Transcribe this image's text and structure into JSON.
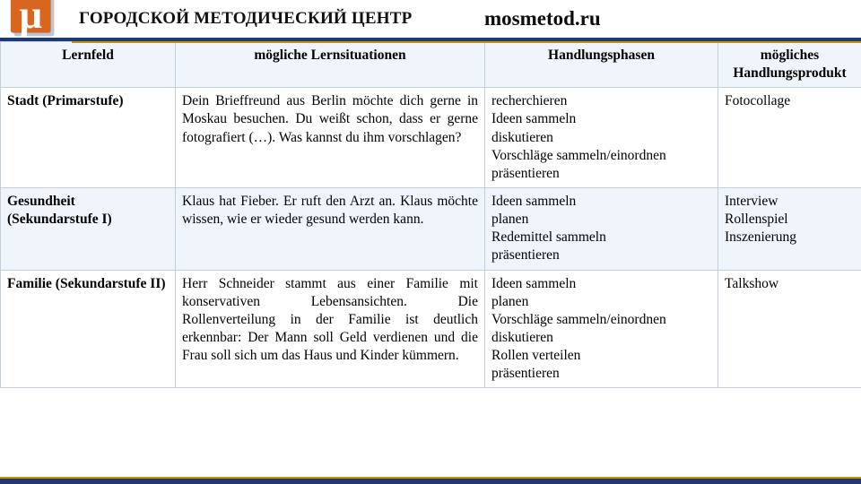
{
  "header": {
    "center_title": "ГОРОДСКОЙ МЕТОДИЧЕСКИЙ ЦЕНТР",
    "site": "mosmetod.ru"
  },
  "table": {
    "headers": {
      "col1": "Lernfeld",
      "col2": "mögliche Lernsituationen",
      "col3": "Handlungsphasen",
      "col4": "mögliches Handlungsprodukt"
    },
    "rows": [
      {
        "lernfeld": "Stadt (Primarstufe)",
        "situation": "Dein Brieffreund aus Berlin möchte dich gerne in Moskau besuchen. Du weißt schon, dass er gerne fotografiert (…). Was kannst du ihm vorschlagen?",
        "phasen": "recherchieren\nIdeen sammeln\ndiskutieren\nVorschläge sammeln/einordnen\npräsentieren",
        "produkt": "Fotocollage"
      },
      {
        "lernfeld": "Gesundheit (Sekundarstufe I)",
        "situation": "Klaus hat Fieber. Er ruft den Arzt an. Klaus möchte wissen, wie er wieder gesund werden kann.",
        "phasen": "Ideen sammeln\nplanen\nRedemittel sammeln\npräsentieren",
        "produkt": "Interview\nRollenspiel\nInszenierung"
      },
      {
        "lernfeld": "Familie (Sekundarstufe II)",
        "situation": "Herr Schneider stammt aus einer Familie mit konservativen Lebensansichten. Die Rollenverteilung in der Familie ist deutlich erkennbar: Der Mann soll Geld verdienen und die Frau soll sich um das Haus und Kinder kümmern.",
        "phasen": "Ideen sammeln\nplanen\nVorschläge sammeln/einordnen\ndiskutieren\nRollen verteilen\npräsentieren",
        "produkt": "Talkshow"
      }
    ]
  },
  "colors": {
    "accent_dark": "#1f3a6e",
    "accent_gold": "#c4900c",
    "row_alt_bg": "#f0f4fb",
    "border": "#c4d0de",
    "logo_orange": "#d9661f",
    "logo_shadow": "#b7c6db"
  }
}
